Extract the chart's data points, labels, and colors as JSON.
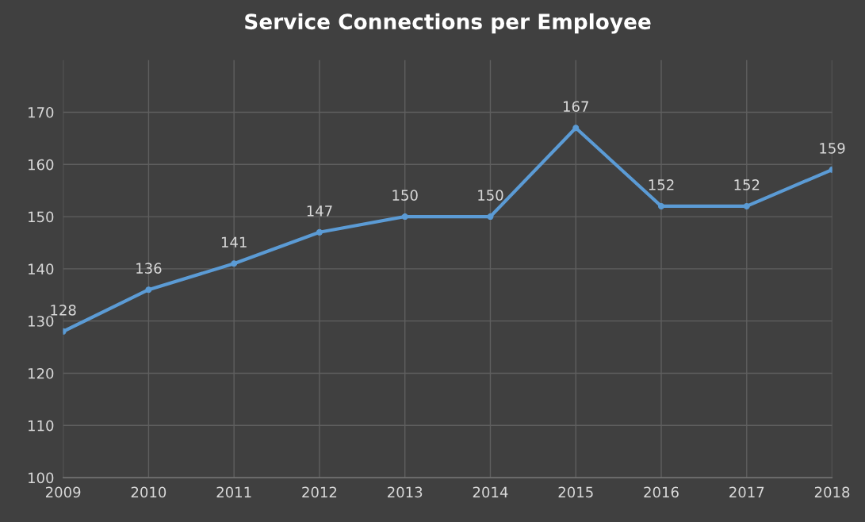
{
  "chart_data": {
    "type": "line",
    "title": "Service Connections per Employee",
    "categories": [
      "2009",
      "2010",
      "2011",
      "2012",
      "2013",
      "2014",
      "2015",
      "2016",
      "2017",
      "2018"
    ],
    "series": [
      {
        "color": "#5b9bd5",
        "values": [
          128,
          136,
          141,
          147,
          150,
          150,
          167,
          152,
          152,
          159
        ]
      }
    ],
    "ylim": [
      100,
      180
    ],
    "yticks": [
      100,
      110,
      120,
      130,
      140,
      150,
      160,
      170
    ],
    "grid": true,
    "marker": "circle",
    "line_style": "solid",
    "data_labels": true
  }
}
